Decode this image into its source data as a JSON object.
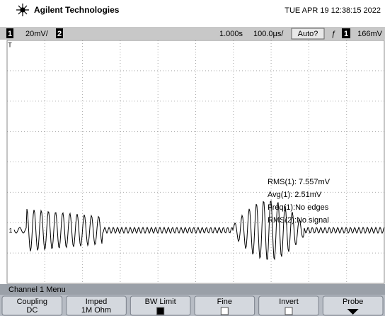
{
  "header": {
    "brand": "Agilent Technologies",
    "datetime": "TUE APR 19 12:38:15 2022"
  },
  "status_bar": {
    "channel1": "1",
    "channel1_scale": "20mV/",
    "channel2": "2",
    "delay": "1.000s",
    "timebase": "100.0µs/",
    "trigger_mode": "Auto?",
    "trigger_source": "1",
    "trigger_level": "166mV"
  },
  "markers": {
    "trigger": "T",
    "channel1": "1"
  },
  "measurements": [
    "RMS(1): 7.557mV",
    "Avg(1): 2.51mV",
    "Freq(1):No edges",
    "RMS(2):No signal"
  ],
  "menu": {
    "title": "Channel 1 Menu",
    "softkeys": [
      {
        "label": "Coupling",
        "value": "DC"
      },
      {
        "label": "Imped",
        "value": "1M Ohm"
      },
      {
        "label": "BW Limit"
      },
      {
        "label": "Fine"
      },
      {
        "label": "Invert"
      },
      {
        "label": "Probe"
      }
    ]
  }
}
